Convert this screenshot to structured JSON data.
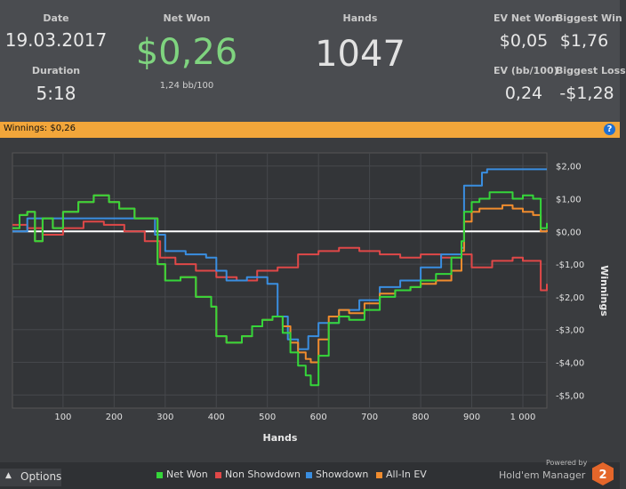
{
  "header": {
    "date_label": "Date",
    "date_value": "19.03.2017",
    "duration_label": "Duration",
    "duration_value": "5:18",
    "net_won_label": "Net Won",
    "net_won_value": "$0,26",
    "net_won_sub": "1,24 bb/100",
    "hands_label": "Hands",
    "hands_value": "1047",
    "ev_net_won_label": "EV Net Won",
    "ev_net_won_value": "$0,05",
    "biggest_win_label": "Biggest Win",
    "biggest_win_value": "$1,76",
    "ev_bb_label": "EV (bb/100)",
    "ev_bb_value": "0,24",
    "biggest_loss_label": "Biggest Loss",
    "biggest_loss_value": "-$1,28"
  },
  "winnings_bar": {
    "text": "Winnings: $0,26",
    "help_icon": "?"
  },
  "footer": {
    "options_label": "Options",
    "powered_by": "Powered by",
    "brand": "Hold'em Manager",
    "brand_badge": "2"
  },
  "colors": {
    "net_won": "#35d63a",
    "non_showdown": "#e04848",
    "showdown": "#3a8ee0",
    "allin_ev": "#f08c2e",
    "accent_bar": "#f2a63a",
    "net_won_text": "#7fd47f"
  },
  "chart_data": {
    "type": "line",
    "xlabel": "Hands",
    "ylabel": "Winnings",
    "xlim": [
      1,
      1047
    ],
    "ylim": [
      -5.4,
      2.4
    ],
    "x_ticks": [
      100,
      200,
      300,
      400,
      500,
      600,
      700,
      800,
      900,
      1000
    ],
    "x_tick_labels": [
      "100",
      "200",
      "300",
      "400",
      "500",
      "600",
      "700",
      "800",
      "900",
      "1 000"
    ],
    "y_ticks": [
      2,
      1,
      0,
      -1,
      -2,
      -3,
      -4,
      -5
    ],
    "y_tick_labels": [
      "$2,00",
      "$1,00",
      "$0,00",
      "-$1,00",
      "-$2,00",
      "-$3,00",
      "-$4,00",
      "-$5,00"
    ],
    "grid": true,
    "legend_position": "bottom",
    "series": [
      {
        "name": "Net Won",
        "color": "#35d63a",
        "x": [
          1,
          15,
          30,
          45,
          60,
          80,
          100,
          130,
          160,
          190,
          210,
          240,
          270,
          285,
          300,
          330,
          360,
          390,
          400,
          420,
          450,
          470,
          490,
          510,
          530,
          545,
          560,
          575,
          585,
          600,
          620,
          640,
          660,
          690,
          720,
          750,
          780,
          800,
          830,
          860,
          880,
          885,
          900,
          915,
          935,
          960,
          980,
          1000,
          1020,
          1035,
          1047
        ],
        "y": [
          0.1,
          0.5,
          0.6,
          -0.3,
          0.4,
          0.1,
          0.6,
          0.9,
          1.1,
          0.9,
          0.7,
          0.4,
          0.4,
          -1.0,
          -1.5,
          -1.4,
          -2.0,
          -2.3,
          -3.2,
          -3.4,
          -3.2,
          -2.9,
          -2.7,
          -2.6,
          -3.1,
          -3.7,
          -4.1,
          -4.4,
          -4.7,
          -3.8,
          -2.8,
          -2.6,
          -2.7,
          -2.4,
          -2.0,
          -1.8,
          -1.7,
          -1.5,
          -1.3,
          -0.8,
          -0.3,
          0.6,
          0.9,
          1.0,
          1.2,
          1.2,
          1.0,
          1.1,
          1.0,
          0.1,
          0.26
        ]
      },
      {
        "name": "Non Showdown",
        "color": "#e04848",
        "x": [
          1,
          30,
          60,
          100,
          140,
          180,
          220,
          260,
          290,
          320,
          360,
          400,
          440,
          480,
          520,
          560,
          600,
          640,
          680,
          720,
          760,
          800,
          840,
          880,
          900,
          940,
          980,
          1000,
          1020,
          1035,
          1047
        ],
        "y": [
          0.2,
          0.1,
          -0.1,
          0.1,
          0.3,
          0.2,
          0.0,
          -0.3,
          -0.8,
          -1.0,
          -1.2,
          -1.4,
          -1.5,
          -1.2,
          -1.1,
          -0.7,
          -0.6,
          -0.5,
          -0.6,
          -0.7,
          -0.8,
          -0.7,
          -0.8,
          -0.7,
          -1.1,
          -0.9,
          -0.8,
          -0.9,
          -0.9,
          -1.8,
          -1.6
        ]
      },
      {
        "name": "Showdown",
        "color": "#3a8ee0",
        "x": [
          1,
          30,
          60,
          100,
          200,
          280,
          300,
          340,
          380,
          400,
          420,
          460,
          500,
          520,
          540,
          560,
          580,
          600,
          640,
          680,
          720,
          760,
          800,
          840,
          880,
          885,
          920,
          930,
          1000,
          1047
        ],
        "y": [
          0.0,
          0.4,
          0.4,
          0.4,
          0.4,
          -0.1,
          -0.6,
          -0.7,
          -0.8,
          -1.2,
          -1.5,
          -1.4,
          -1.6,
          -2.6,
          -3.3,
          -3.6,
          -3.2,
          -2.8,
          -2.4,
          -2.1,
          -1.7,
          -1.5,
          -1.1,
          -0.7,
          -0.5,
          1.4,
          1.8,
          1.9,
          1.9,
          1.9
        ]
      },
      {
        "name": "All-In EV",
        "color": "#f08c2e",
        "x": [
          1,
          15,
          30,
          45,
          60,
          80,
          100,
          130,
          160,
          190,
          210,
          240,
          270,
          285,
          300,
          330,
          360,
          390,
          400,
          420,
          450,
          470,
          490,
          510,
          530,
          545,
          560,
          575,
          585,
          600,
          620,
          640,
          660,
          690,
          720,
          750,
          780,
          800,
          830,
          860,
          880,
          885,
          900,
          915,
          935,
          960,
          980,
          1000,
          1020,
          1035,
          1047
        ],
        "y": [
          0.1,
          0.5,
          0.6,
          -0.3,
          0.4,
          0.1,
          0.6,
          0.9,
          1.1,
          0.9,
          0.7,
          0.4,
          0.4,
          -1.0,
          -1.5,
          -1.4,
          -2.0,
          -2.3,
          -3.2,
          -3.4,
          -3.2,
          -2.9,
          -2.7,
          -2.6,
          -2.9,
          -3.4,
          -3.7,
          -3.9,
          -4.0,
          -3.3,
          -2.6,
          -2.4,
          -2.5,
          -2.2,
          -1.9,
          -1.8,
          -1.7,
          -1.6,
          -1.5,
          -1.2,
          -0.6,
          0.3,
          0.6,
          0.7,
          0.7,
          0.8,
          0.7,
          0.6,
          0.5,
          0.0,
          0.05
        ]
      }
    ]
  }
}
